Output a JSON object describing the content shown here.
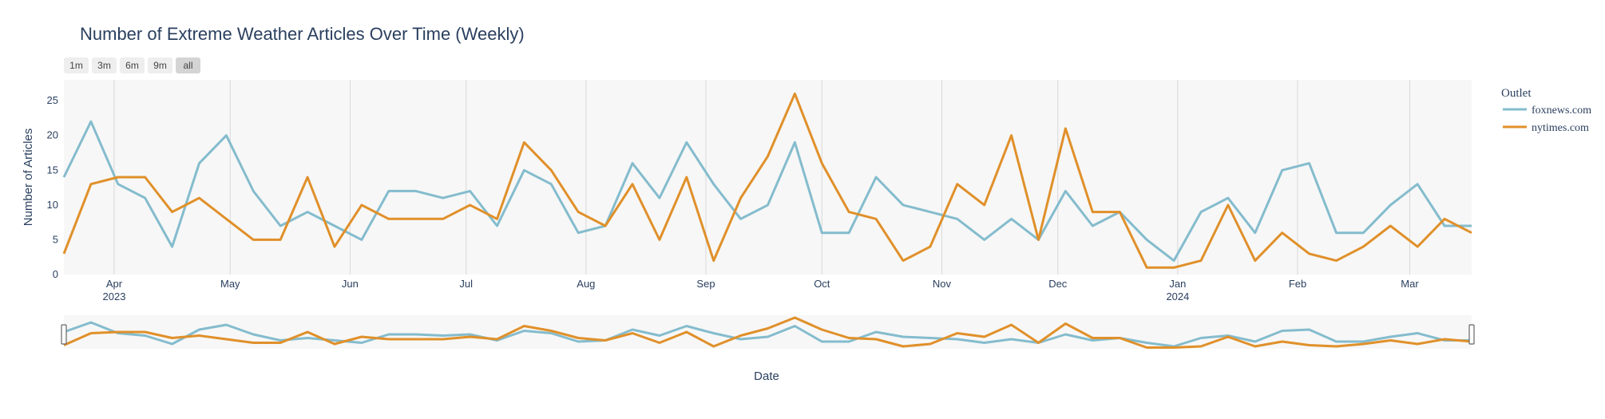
{
  "chart_data": {
    "type": "line",
    "title": "Number of Extreme Weather Articles Over Time (Weekly)",
    "xlabel": "Date",
    "ylabel": "Number of Articles",
    "ylim": [
      0,
      28
    ],
    "yticks": [
      0,
      5,
      10,
      15,
      20,
      25
    ],
    "xlim": [
      "2023-03-19",
      "2024-03-17"
    ],
    "xticks": [
      {
        "date": "2023-04-01",
        "label": "Apr",
        "sub": "2023"
      },
      {
        "date": "2023-05-01",
        "label": "May",
        "sub": ""
      },
      {
        "date": "2023-06-01",
        "label": "Jun",
        "sub": ""
      },
      {
        "date": "2023-07-01",
        "label": "Jul",
        "sub": ""
      },
      {
        "date": "2023-08-01",
        "label": "Aug",
        "sub": ""
      },
      {
        "date": "2023-09-01",
        "label": "Sep",
        "sub": ""
      },
      {
        "date": "2023-10-01",
        "label": "Oct",
        "sub": ""
      },
      {
        "date": "2023-11-01",
        "label": "Nov",
        "sub": ""
      },
      {
        "date": "2023-12-01",
        "label": "Dec",
        "sub": ""
      },
      {
        "date": "2024-01-01",
        "label": "Jan",
        "sub": "2024"
      },
      {
        "date": "2024-02-01",
        "label": "Feb",
        "sub": ""
      },
      {
        "date": "2024-03-01",
        "label": "Mar",
        "sub": ""
      }
    ],
    "x": [
      "2023-03-19",
      "2023-03-26",
      "2023-04-02",
      "2023-04-09",
      "2023-04-16",
      "2023-04-23",
      "2023-04-30",
      "2023-05-07",
      "2023-05-14",
      "2023-05-21",
      "2023-05-28",
      "2023-06-04",
      "2023-06-11",
      "2023-06-18",
      "2023-06-25",
      "2023-07-02",
      "2023-07-09",
      "2023-07-16",
      "2023-07-23",
      "2023-07-30",
      "2023-08-06",
      "2023-08-13",
      "2023-08-20",
      "2023-08-27",
      "2023-09-03",
      "2023-09-10",
      "2023-09-17",
      "2023-09-24",
      "2023-10-01",
      "2023-10-08",
      "2023-10-15",
      "2023-10-22",
      "2023-10-29",
      "2023-11-05",
      "2023-11-12",
      "2023-11-19",
      "2023-11-26",
      "2023-12-03",
      "2023-12-10",
      "2023-12-17",
      "2023-12-24",
      "2023-12-31",
      "2024-01-07",
      "2024-01-14",
      "2024-01-21",
      "2024-01-28",
      "2024-02-04",
      "2024-02-11",
      "2024-02-18",
      "2024-02-25",
      "2024-03-03",
      "2024-03-10",
      "2024-03-17"
    ],
    "series": [
      {
        "name": "foxnews.com",
        "color": "#84bccd",
        "values": [
          14,
          22,
          13,
          11,
          4,
          16,
          20,
          12,
          7,
          9,
          7,
          5,
          12,
          12,
          11,
          12,
          7,
          15,
          13,
          6,
          7,
          16,
          11,
          19,
          13,
          8,
          10,
          19,
          6,
          6,
          14,
          10,
          9,
          8,
          5,
          8,
          5,
          12,
          7,
          9,
          5,
          2,
          9,
          11,
          6,
          15,
          16,
          6,
          6,
          10,
          13,
          7,
          7
        ]
      },
      {
        "name": "nytimes.com",
        "color": "#e0902a",
        "values": [
          3,
          13,
          14,
          14,
          9,
          11,
          8,
          5,
          5,
          14,
          4,
          10,
          8,
          8,
          8,
          10,
          8,
          19,
          15,
          9,
          7,
          13,
          5,
          14,
          2,
          11,
          17,
          26,
          16,
          9,
          8,
          2,
          4,
          13,
          10,
          20,
          5,
          21,
          9,
          9,
          1,
          1,
          2,
          10,
          2,
          6,
          3,
          2,
          4,
          7,
          4,
          8,
          6
        ]
      }
    ],
    "grid": true,
    "legend": {
      "title": "Outlet",
      "placement": "right"
    },
    "range_buttons": [
      "1m",
      "3m",
      "6m",
      "9m",
      "all"
    ],
    "active_range": "all",
    "range_slider": true
  }
}
